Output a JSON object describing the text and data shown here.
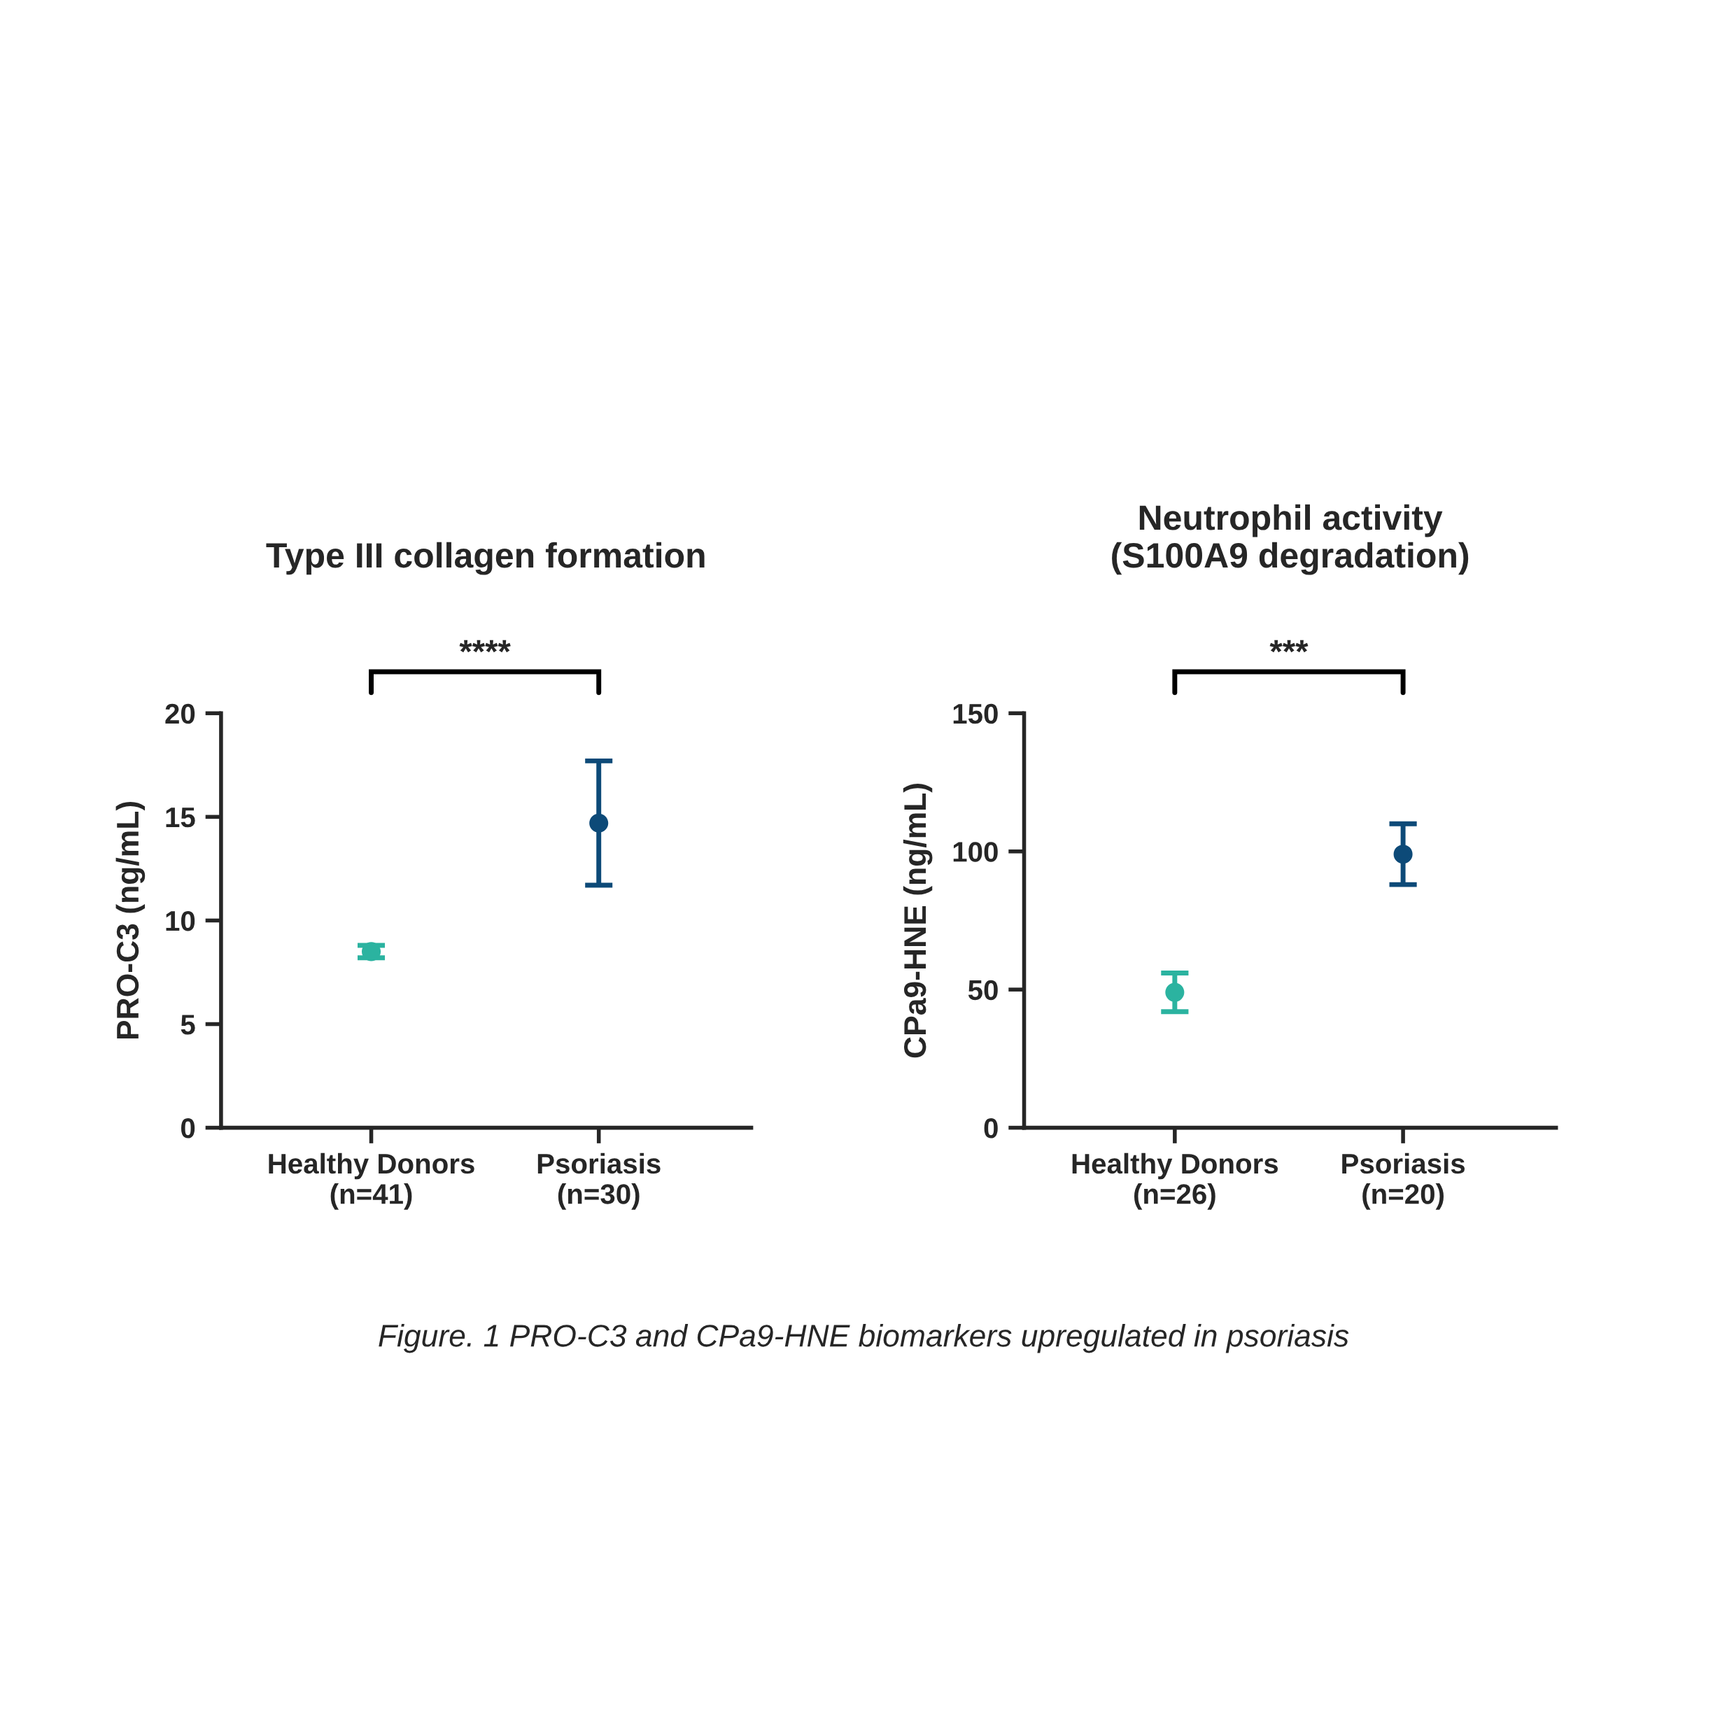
{
  "chart_data": [
    {
      "type": "scatter",
      "title": "Type III collagen formation",
      "ylabel": "PRO-C3 (ng/mL)",
      "categories": [
        "Healthy Donors\n(n=41)",
        "Psoriasis\n(n=30)"
      ],
      "values": [
        8.5,
        14.7
      ],
      "errors": [
        0.3,
        3
      ],
      "colors": [
        "#2bb3a0",
        "#0d4a78"
      ],
      "ylim": [
        0,
        20
      ],
      "yticks": [
        0,
        5,
        10,
        15,
        20
      ],
      "marker": "circle",
      "grid": false,
      "legend": false,
      "annotations": [
        "****",
        "Figure. 1 PRO-C3 and CPa9-HNE biomarkers upregulated in psoriasis"
      ]
    },
    {
      "type": "scatter",
      "title": "Neutrophil activity\n(S100A9 degradation)",
      "ylabel": "CPa9-HNE (ng/mL)",
      "categories": [
        "Healthy Donors\n(n=26)",
        "Psoriasis\n(n=20)"
      ],
      "values": [
        49,
        99
      ],
      "errors": [
        7,
        [
          88,
          110
        ]
      ],
      "colors": [
        "#2bb3a0",
        "#0d4a78"
      ],
      "ylim": [
        0,
        150
      ],
      "yticks": [
        0,
        50,
        100,
        150
      ],
      "marker": "circle",
      "grid": false,
      "legend": false,
      "annotations": [
        "***"
      ]
    }
  ]
}
